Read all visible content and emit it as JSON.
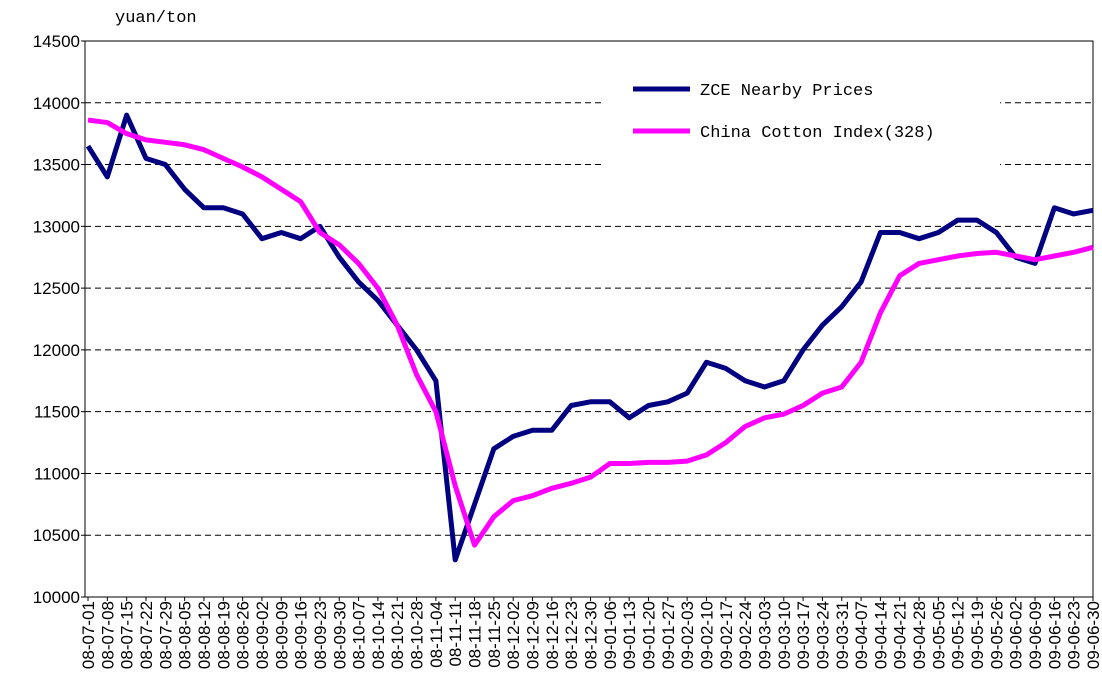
{
  "chart_data": {
    "type": "line",
    "y_label": "yuan/ton",
    "categories": [
      "08-07-01",
      "08-07-08",
      "08-07-15",
      "08-07-22",
      "08-07-29",
      "08-08-05",
      "08-08-12",
      "08-08-19",
      "08-08-26",
      "08-09-02",
      "08-09-09",
      "08-09-16",
      "08-09-23",
      "08-09-30",
      "08-10-07",
      "08-10-14",
      "08-10-21",
      "08-10-28",
      "08-11-04",
      "08-11-11",
      "08-11-18",
      "08-11-25",
      "08-12-02",
      "08-12-09",
      "08-12-16",
      "08-12-23",
      "08-12-30",
      "09-01-06",
      "09-01-13",
      "09-01-20",
      "09-01-27",
      "09-02-03",
      "09-02-10",
      "09-02-17",
      "09-02-24",
      "09-03-03",
      "09-03-10",
      "09-03-17",
      "09-03-24",
      "09-03-31",
      "09-04-07",
      "09-04-14",
      "09-04-21",
      "09-04-28",
      "09-05-05",
      "09-05-12",
      "09-05-19",
      "09-05-26",
      "09-06-02",
      "09-06-09",
      "09-06-16",
      "09-06-23",
      "09-06-30"
    ],
    "series": [
      {
        "name": "ZCE Nearby Prices",
        "color": "#000080",
        "values": [
          13650,
          13400,
          13900,
          13550,
          13500,
          13300,
          13150,
          13150,
          13100,
          12900,
          12950,
          12900,
          13000,
          12750,
          12550,
          12400,
          12200,
          12000,
          11750,
          10300,
          10750,
          11200,
          11300,
          11350,
          11350,
          11550,
          11580,
          11580,
          11450,
          11550,
          11580,
          11650,
          11900,
          11850,
          11750,
          11700,
          11750,
          12000,
          12200,
          12350,
          12550,
          12950,
          12950,
          12900,
          12950,
          13050,
          13050,
          12950,
          12750,
          12700,
          13150,
          13100,
          13130
        ]
      },
      {
        "name": "China Cotton Index(328)",
        "color": "#ff00ff",
        "values": [
          13860,
          13840,
          13750,
          13700,
          13680,
          13660,
          13620,
          13550,
          13480,
          13400,
          13300,
          13200,
          12950,
          12850,
          12700,
          12500,
          12200,
          11800,
          11500,
          10900,
          10420,
          10650,
          10780,
          10820,
          10880,
          10920,
          10970,
          11080,
          11080,
          11090,
          11090,
          11100,
          11150,
          11250,
          11380,
          11450,
          11480,
          11550,
          11650,
          11700,
          11900,
          12300,
          12600,
          12700,
          12730,
          12760,
          12780,
          12790,
          12760,
          12730,
          12760,
          12790,
          12830
        ]
      }
    ],
    "ylim": [
      10000,
      14500
    ],
    "yticks": [
      10000,
      10500,
      11000,
      11500,
      12000,
      12500,
      13000,
      13500,
      14000,
      14500
    ],
    "grid": true,
    "legend": "upper-right"
  }
}
